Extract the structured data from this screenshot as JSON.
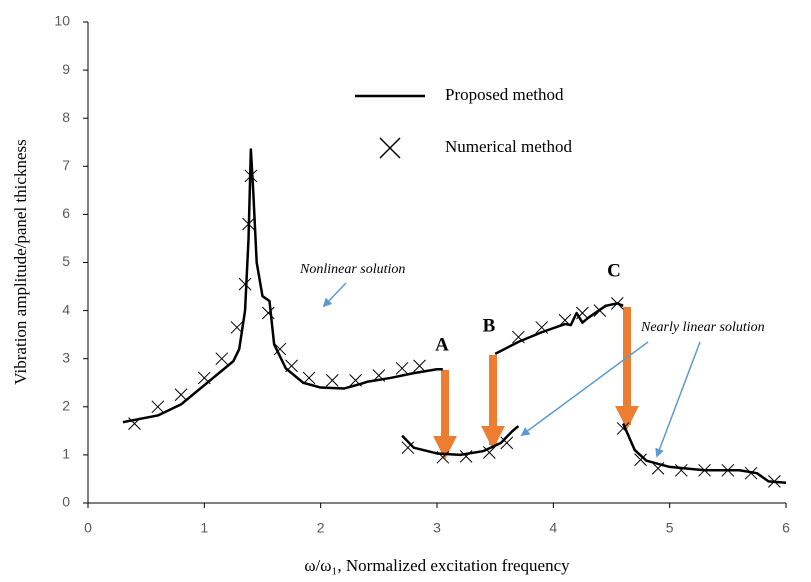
{
  "chart_data": {
    "type": "line",
    "x_label": "ω/ω₁,  Normalized excitation frequency",
    "y_label": "Vibration amplitude/panel thickness",
    "xlim": [
      0,
      6
    ],
    "xticks": [
      0,
      1,
      2,
      3,
      4,
      5,
      6
    ],
    "ylim": [
      0,
      10
    ],
    "yticks": [
      0,
      1,
      2,
      3,
      4,
      5,
      6,
      7,
      8,
      9,
      10
    ],
    "annotations": [
      "A",
      "B",
      "C",
      "Nonlinear solution",
      "Nearly linear solution"
    ],
    "series": [
      {
        "name": "Proposed method",
        "color": "#000000",
        "marker": "line",
        "x": [
          0.3,
          0.45,
          0.6,
          0.8,
          1.0,
          1.15,
          1.25,
          1.3,
          1.35,
          1.38,
          1.4,
          1.42,
          1.45,
          1.5,
          1.53,
          1.56,
          1.6,
          1.7,
          1.85,
          2.0,
          2.2,
          2.35,
          2.4,
          2.6,
          2.8,
          3.0,
          3.05,
          null,
          2.7,
          2.8,
          3.0,
          3.2,
          3.4,
          3.55,
          3.65,
          3.7,
          null,
          3.5,
          3.7,
          3.9,
          4.1,
          4.15,
          4.2,
          4.25,
          4.3,
          4.45,
          4.55,
          4.6,
          null,
          4.6,
          4.7,
          4.8,
          5.0,
          5.3,
          5.6,
          5.75,
          5.85,
          6.0
        ],
        "values": [
          1.68,
          1.75,
          1.82,
          2.05,
          2.45,
          2.75,
          2.95,
          3.2,
          4.0,
          5.5,
          7.35,
          6.5,
          5.0,
          4.3,
          4.25,
          4.2,
          3.3,
          2.8,
          2.5,
          2.4,
          2.38,
          2.48,
          2.52,
          2.6,
          2.7,
          2.78,
          2.78,
          null,
          1.4,
          1.15,
          1.03,
          1.0,
          1.08,
          1.25,
          1.5,
          1.6,
          null,
          3.1,
          3.35,
          3.55,
          3.72,
          3.7,
          3.95,
          3.75,
          3.85,
          4.1,
          4.15,
          4.1,
          null,
          1.65,
          1.1,
          0.88,
          0.75,
          0.68,
          0.68,
          0.62,
          0.45,
          0.42
        ]
      },
      {
        "name": "Numerical method",
        "color": "#000000",
        "marker": "cross",
        "x": [
          0.4,
          0.6,
          0.8,
          1.0,
          1.15,
          1.28,
          1.35,
          1.38,
          1.4,
          1.55,
          1.65,
          1.75,
          1.9,
          2.1,
          2.3,
          2.5,
          2.7,
          2.85,
          2.75,
          3.05,
          3.25,
          3.45,
          3.6,
          3.7,
          3.9,
          4.1,
          4.25,
          4.4,
          4.55,
          4.6,
          4.75,
          4.9,
          5.1,
          5.3,
          5.5,
          5.7,
          5.9
        ],
        "values": [
          1.65,
          2.0,
          2.25,
          2.6,
          3.0,
          3.65,
          4.55,
          5.8,
          6.8,
          3.95,
          3.2,
          2.85,
          2.6,
          2.55,
          2.55,
          2.65,
          2.8,
          2.85,
          1.15,
          0.95,
          0.97,
          1.05,
          1.25,
          3.45,
          3.65,
          3.8,
          3.95,
          4.0,
          4.15,
          1.55,
          0.9,
          0.72,
          0.68,
          0.68,
          0.68,
          0.62,
          0.45
        ]
      }
    ]
  }
}
